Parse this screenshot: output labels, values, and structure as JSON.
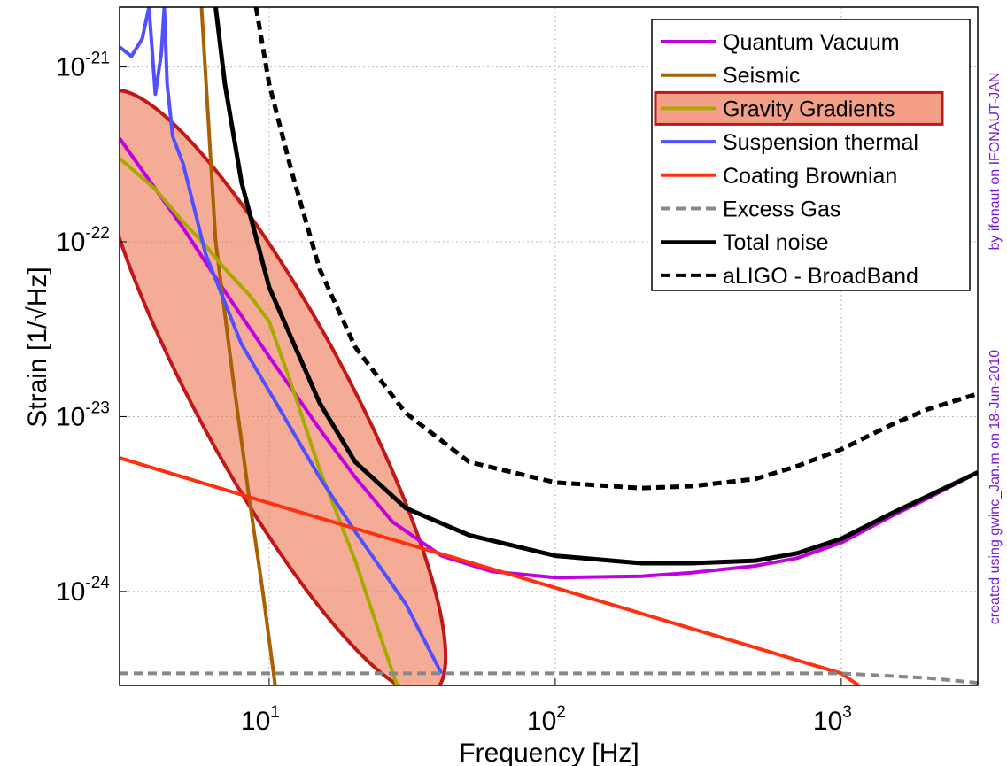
{
  "chart_data": {
    "type": "line",
    "xlabel": "Frequency [Hz]",
    "ylabel": "Strain [1/√Hz]",
    "x_scale": "log",
    "y_scale": "log",
    "xlim": [
      3,
      3000
    ],
    "ylim": [
      2.9e-25,
      2.2e-21
    ],
    "grid": true,
    "legend_position": "top-right",
    "x_ticks": [
      {
        "base": "10",
        "exp": "1",
        "value": 10
      },
      {
        "base": "10",
        "exp": "2",
        "value": 100
      },
      {
        "base": "10",
        "exp": "3",
        "value": 1000
      }
    ],
    "y_ticks": [
      {
        "base": "10",
        "exp": "-21",
        "value": 1e-21
      },
      {
        "base": "10",
        "exp": "-22",
        "value": 1e-22
      },
      {
        "base": "10",
        "exp": "-23",
        "value": 1e-23
      },
      {
        "base": "10",
        "exp": "-24",
        "value": 1e-24
      }
    ],
    "series": [
      {
        "name": "Quantum Vacuum",
        "color": "#c000e0",
        "style": "solid",
        "x": [
          3,
          5,
          7,
          10,
          15,
          20,
          27,
          40,
          60,
          100,
          200,
          300,
          500,
          700,
          1000,
          1500,
          2000,
          3000
        ],
        "y": [
          3.9e-22,
          1.2e-22,
          5.2e-23,
          2.2e-23,
          8.5e-24,
          4.5e-24,
          2.5e-24,
          1.6e-24,
          1.3e-24,
          1.2e-24,
          1.22e-24,
          1.28e-24,
          1.4e-24,
          1.55e-24,
          1.9e-24,
          2.7e-24,
          3.4e-24,
          4.8e-24
        ]
      },
      {
        "name": "Seismic",
        "color": "#a86000",
        "style": "solid",
        "x": [
          5.8,
          6.5,
          7.5,
          8.5,
          9.5,
          10.5
        ],
        "y": [
          2.2e-21,
          1e-22,
          1.6e-23,
          3.5e-24,
          1e-24,
          2.9e-25
        ]
      },
      {
        "name": "Gravity Gradients",
        "color": "#a8a800",
        "style": "solid",
        "x": [
          3,
          4,
          5,
          6,
          7,
          8.5,
          10,
          12,
          15,
          20,
          25,
          28
        ],
        "y": [
          3e-22,
          2e-22,
          1.3e-22,
          9.5e-23,
          7e-23,
          5e-23,
          3.5e-23,
          1.5e-23,
          5e-24,
          1.5e-24,
          5e-25,
          2.9e-25
        ]
      },
      {
        "name": "Suspension thermal",
        "color": "#5050ff",
        "style": "solid",
        "x": [
          3,
          3.3,
          3.6,
          3.8,
          4.0,
          4.2,
          4.3,
          4.4,
          4.6,
          5,
          6,
          8,
          10,
          15,
          20,
          30,
          40
        ],
        "y": [
          1.3e-21,
          1.15e-21,
          1.45e-21,
          2.2e-21,
          7e-22,
          1.2e-21,
          2.2e-21,
          8e-22,
          4e-22,
          2.8e-22,
          8.5e-23,
          2.6e-23,
          1.4e-23,
          4.5e-24,
          2.2e-24,
          8.5e-25,
          3.4e-25
        ]
      },
      {
        "name": "Coating Brownian",
        "color": "#ff3010",
        "style": "solid",
        "x": [
          3,
          10,
          100,
          1000,
          1150
        ],
        "y": [
          5.8e-24,
          3.2e-24,
          1.05e-24,
          3.4e-25,
          2.9e-25
        ]
      },
      {
        "name": "Excess Gas",
        "color": "#888888",
        "style": "dashed",
        "x": [
          3,
          100,
          1000,
          2000,
          3000
        ],
        "y": [
          3.4e-25,
          3.4e-25,
          3.4e-25,
          3.2e-25,
          3e-25
        ]
      },
      {
        "name": "Total noise",
        "color": "#000000",
        "style": "solid",
        "x": [
          6.5,
          7,
          8,
          10,
          15,
          20,
          30,
          50,
          100,
          200,
          300,
          500,
          700,
          1000,
          1500,
          2000,
          3000
        ],
        "y": [
          2.2e-21,
          8e-22,
          2.2e-22,
          5.5e-23,
          1.2e-23,
          5.5e-24,
          3e-24,
          2.1e-24,
          1.6e-24,
          1.45e-24,
          1.45e-24,
          1.5e-24,
          1.65e-24,
          2e-24,
          2.8e-24,
          3.5e-24,
          4.8e-24
        ]
      },
      {
        "name": "aLIGO - BroadBand",
        "color": "#000000",
        "style": "dashed",
        "x": [
          9,
          10,
          12,
          15,
          20,
          30,
          50,
          100,
          200,
          300,
          500,
          700,
          1000,
          1500,
          2000,
          3000
        ],
        "y": [
          2.2e-21,
          8e-22,
          2.5e-22,
          7e-23,
          2.5e-23,
          1.05e-23,
          5.5e-24,
          4.2e-24,
          3.9e-24,
          4e-24,
          4.4e-24,
          5.2e-24,
          6.5e-24,
          9e-24,
          1.1e-23,
          1.35e-23
        ]
      }
    ],
    "annotations": [
      {
        "text": "by ifonaut on IFONAUT-JAN",
        "color": "#7a18d8"
      },
      {
        "text": "created using gwinc_Jan.m on 18-Jun-2010",
        "color": "#7a18d8"
      }
    ],
    "highlight": {
      "target": "Gravity Gradients",
      "color": "#f08060",
      "border": "#c01818"
    }
  }
}
